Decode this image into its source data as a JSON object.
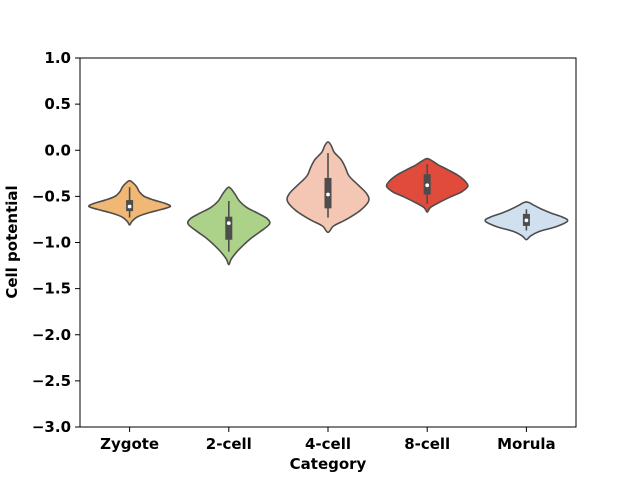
{
  "chart_data": {
    "type": "violin",
    "title": "",
    "xlabel": "Category",
    "ylabel": "Cell potential",
    "ylim": [
      -3.0,
      1.0
    ],
    "yticks": [
      1.0,
      0.5,
      0.0,
      -0.5,
      -1.0,
      -1.5,
      -2.0,
      -2.5,
      -3.0
    ],
    "ytick_labels": [
      "1.0",
      "0.5",
      "0.0",
      "−0.5",
      "−1.0",
      "−1.5",
      "−2.0",
      "−2.5",
      "−3.0"
    ],
    "grid": false,
    "categories": [
      "Zygote",
      "2-cell",
      "4-cell",
      "8-cell",
      "Morula"
    ],
    "colors": [
      "#f0b775",
      "#acd28a",
      "#f4c7b4",
      "#e04b3c",
      "#d1e0ee"
    ],
    "violins": [
      {
        "category": "Zygote",
        "min": -0.73,
        "q1": -0.66,
        "median": -0.61,
        "q3": -0.54,
        "max": -0.4,
        "profile": [
          [
            -0.81,
            0.0
          ],
          [
            -0.77,
            0.06
          ],
          [
            -0.72,
            0.2
          ],
          [
            -0.68,
            0.45
          ],
          [
            -0.64,
            0.8
          ],
          [
            -0.61,
            1.0
          ],
          [
            -0.58,
            0.9
          ],
          [
            -0.54,
            0.6
          ],
          [
            -0.5,
            0.36
          ],
          [
            -0.45,
            0.24
          ],
          [
            -0.4,
            0.18
          ],
          [
            -0.36,
            0.1
          ],
          [
            -0.33,
            0.0
          ]
        ]
      },
      {
        "category": "2-cell",
        "min": -1.1,
        "q1": -0.97,
        "median": -0.79,
        "q3": -0.72,
        "max": -0.55,
        "profile": [
          [
            -1.24,
            0.0
          ],
          [
            -1.18,
            0.06
          ],
          [
            -1.1,
            0.2
          ],
          [
            -1.02,
            0.38
          ],
          [
            -0.95,
            0.56
          ],
          [
            -0.88,
            0.78
          ],
          [
            -0.8,
            1.0
          ],
          [
            -0.74,
            0.94
          ],
          [
            -0.68,
            0.7
          ],
          [
            -0.62,
            0.44
          ],
          [
            -0.55,
            0.26
          ],
          [
            -0.48,
            0.16
          ],
          [
            -0.42,
            0.06
          ],
          [
            -0.4,
            0.0
          ]
        ]
      },
      {
        "category": "4-cell",
        "min": -0.73,
        "q1": -0.63,
        "median": -0.48,
        "q3": -0.3,
        "max": -0.03,
        "profile": [
          [
            -0.89,
            0.0
          ],
          [
            -0.82,
            0.14
          ],
          [
            -0.75,
            0.45
          ],
          [
            -0.65,
            0.8
          ],
          [
            -0.55,
            1.0
          ],
          [
            -0.47,
            0.95
          ],
          [
            -0.38,
            0.75
          ],
          [
            -0.28,
            0.52
          ],
          [
            -0.18,
            0.42
          ],
          [
            -0.1,
            0.32
          ],
          [
            -0.02,
            0.15
          ],
          [
            0.05,
            0.08
          ],
          [
            0.09,
            0.0
          ]
        ]
      },
      {
        "category": "8-cell",
        "min": -0.58,
        "q1": -0.48,
        "median": -0.38,
        "q3": -0.26,
        "max": -0.15,
        "profile": [
          [
            -0.67,
            0.0
          ],
          [
            -0.62,
            0.08
          ],
          [
            -0.56,
            0.32
          ],
          [
            -0.5,
            0.6
          ],
          [
            -0.45,
            0.85
          ],
          [
            -0.39,
            1.0
          ],
          [
            -0.33,
            0.92
          ],
          [
            -0.27,
            0.75
          ],
          [
            -0.21,
            0.5
          ],
          [
            -0.16,
            0.28
          ],
          [
            -0.12,
            0.14
          ],
          [
            -0.09,
            0.0
          ]
        ]
      },
      {
        "category": "Morula",
        "min": -0.87,
        "q1": -0.82,
        "median": -0.76,
        "q3": -0.69,
        "max": -0.64,
        "profile": [
          [
            -0.97,
            0.0
          ],
          [
            -0.93,
            0.1
          ],
          [
            -0.88,
            0.32
          ],
          [
            -0.83,
            0.72
          ],
          [
            -0.78,
            0.98
          ],
          [
            -0.75,
            1.0
          ],
          [
            -0.72,
            0.86
          ],
          [
            -0.68,
            0.6
          ],
          [
            -0.64,
            0.38
          ],
          [
            -0.6,
            0.2
          ],
          [
            -0.57,
            0.08
          ],
          [
            -0.56,
            0.0
          ]
        ]
      }
    ]
  }
}
